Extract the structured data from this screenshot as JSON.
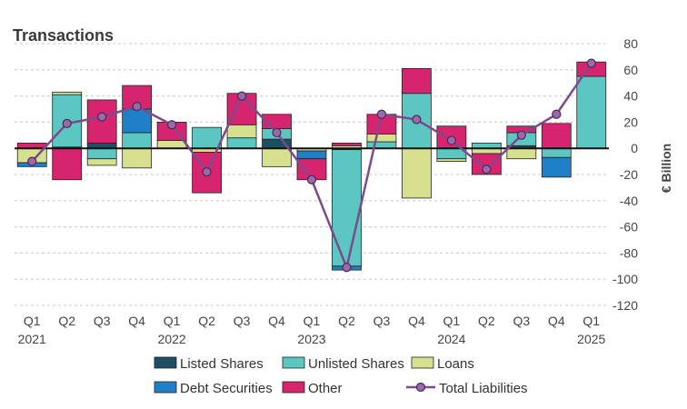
{
  "chart_data": {
    "type": "bar",
    "subtype": "stacked-bar-with-line",
    "title": "Transactions",
    "ylabel": "€ Billion",
    "xlabel": "",
    "ylim": [
      -120,
      80
    ],
    "yticks": [
      80,
      60,
      40,
      20,
      0,
      -20,
      -40,
      -60,
      -80,
      -100,
      -120
    ],
    "categories": [
      "Q1",
      "Q2",
      "Q3",
      "Q4",
      "Q1",
      "Q2",
      "Q3",
      "Q4",
      "Q1",
      "Q2",
      "Q3",
      "Q4",
      "Q1",
      "Q2",
      "Q3",
      "Q4",
      "Q1"
    ],
    "years": [
      {
        "label": "2021",
        "index": 0
      },
      {
        "label": "2022",
        "index": 4
      },
      {
        "label": "2023",
        "index": 8
      },
      {
        "label": "2024",
        "index": 12
      },
      {
        "label": "2025",
        "index": 16
      }
    ],
    "series": [
      {
        "name": "Listed Shares",
        "color": "#1d4e63",
        "values": [
          0,
          1,
          4,
          0,
          0,
          0,
          0,
          7,
          0,
          -1,
          0,
          0,
          0,
          0,
          2,
          0,
          0
        ]
      },
      {
        "name": "Unlisted Shares",
        "color": "#5cc6c2",
        "values": [
          0,
          40,
          -8,
          12,
          0,
          16,
          8,
          8,
          0,
          -89,
          5,
          42,
          -8,
          4,
          10,
          -7,
          55
        ]
      },
      {
        "name": "Loans",
        "color": "#d6e08e",
        "values": [
          -11,
          2,
          -5,
          -15,
          6,
          -3,
          10,
          -14,
          -2,
          2,
          6,
          -38,
          -2,
          -4,
          -8,
          0,
          0
        ]
      },
      {
        "name": "Debt Securities",
        "color": "#1f7fc7",
        "values": [
          -3,
          0,
          0,
          18,
          0,
          0,
          0,
          0,
          -6,
          -3,
          0,
          0,
          0,
          0,
          0,
          -15,
          0
        ]
      },
      {
        "name": "Other",
        "color": "#d6246f",
        "values": [
          4,
          -24,
          33,
          18,
          14,
          -31,
          24,
          11,
          -16,
          2,
          15,
          19,
          17,
          -16,
          5,
          19,
          11
        ]
      }
    ],
    "line": {
      "name": "Total Liabilities",
      "color": "#7d4a8c",
      "marker_color": "#9a6aa8",
      "values": [
        -10,
        19,
        24,
        32,
        18,
        -18,
        40,
        12,
        -24,
        -91,
        26,
        22,
        6,
        -16,
        10,
        26,
        65
      ]
    },
    "legend": [
      {
        "name": "Listed Shares",
        "kind": "box",
        "color": "#1d4e63"
      },
      {
        "name": "Unlisted Shares",
        "kind": "box",
        "color": "#5cc6c2"
      },
      {
        "name": "Loans",
        "kind": "box",
        "color": "#d6e08e"
      },
      {
        "name": "Debt Securities",
        "kind": "box",
        "color": "#1f7fc7"
      },
      {
        "name": "Other",
        "kind": "box",
        "color": "#d6246f"
      },
      {
        "name": "Total Liabilities",
        "kind": "line",
        "color": "#7d4a8c"
      }
    ],
    "legend_position": "bottom",
    "grid": true
  }
}
